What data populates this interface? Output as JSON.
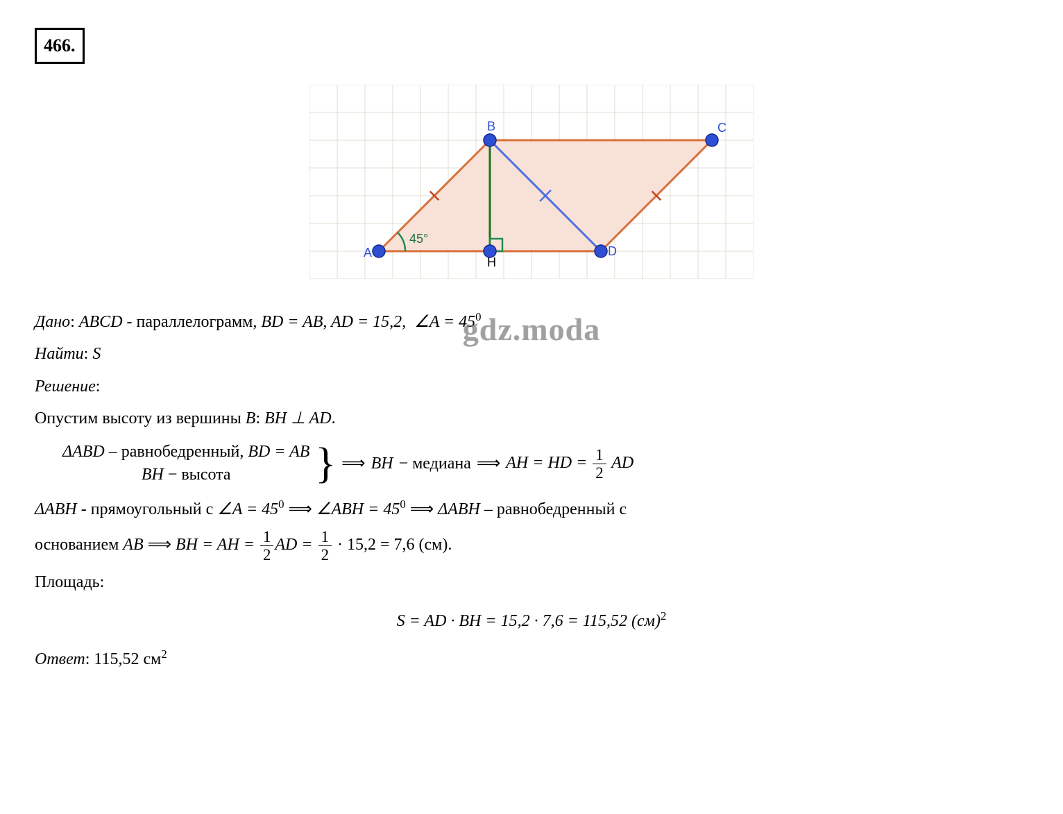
{
  "problem_number": "466.",
  "watermark": "gdz.moda",
  "diagram": {
    "grid": {
      "cols": 16,
      "rows": 7,
      "cell": 40,
      "color": "#e0dccf",
      "background": "#ffffff"
    },
    "shape_fill": "#f8e2d8",
    "line_color": "#d96f3a",
    "line_width": 3,
    "points": {
      "A": {
        "x": 2.5,
        "y": 6,
        "label": "A",
        "label_dx": -22,
        "label_dy": 8
      },
      "B": {
        "x": 6.5,
        "y": 2,
        "label": "B",
        "label_dx": -4,
        "label_dy": -14
      },
      "C": {
        "x": 14.5,
        "y": 2,
        "label": "C",
        "label_dx": 8,
        "label_dy": -12
      },
      "D": {
        "x": 10.5,
        "y": 6,
        "label": "D",
        "label_dx": 10,
        "label_dy": 6
      },
      "H": {
        "x": 6.5,
        "y": 6,
        "label": "H",
        "label_dx": -4,
        "label_dy": 22
      }
    },
    "point_radius": 9,
    "point_fill": "#2e4fd4",
    "point_stroke": "#1a2a88",
    "label_color": "#2e4fd4",
    "label_fontsize": 18,
    "height_line_color": "#1f6f1f",
    "diag_line_color": "#5070e0",
    "tick_color": "#c44020",
    "angle_arc_color": "#1f8f4f",
    "angle_label": "45°",
    "angle_label_color": "#1f6f3f",
    "perp_square_color": "#1f8f4f"
  },
  "given": {
    "label": "Дано",
    "text1": "ABCD",
    "text2": " - параллелограмм, ",
    "eq1": "BD = AB, AD = 15,2,",
    "angle": "∠A = 45",
    "deg": "0"
  },
  "find": {
    "label": "Найти",
    "value": "S"
  },
  "solution_label": "Решение",
  "step1": {
    "prefix": "Опустим высоту из вершины ",
    "v": "B",
    "mid": ": ",
    "perp": "BH ⊥ AD",
    "suffix": "."
  },
  "brace": {
    "line1a": "ΔABD",
    "line1b": " – равнобедренный, ",
    "line1c": "BD = AB",
    "line2a": "BH",
    "line2b": " − высота",
    "tail1a": "BH",
    "tail1b": " − медиана",
    "tail2a": "AH = HD = ",
    "tail2num": "1",
    "tail2den": "2",
    "tail2c": " AD"
  },
  "step2": {
    "a": "ΔABH",
    "b": " - прямоугольный с ",
    "c": "∠A = 45",
    "deg": "0",
    "d": "∠ABH = 45",
    "e": "ΔABH",
    "f": " – равнобедренный с"
  },
  "step3": {
    "a": "основанием ",
    "b": "AB",
    "c": "BH = AH = ",
    "num1": "1",
    "den1": "2",
    "d": "AD = ",
    "num2": "1",
    "den2": "2",
    "e": " · 15,2 = 7,6 (см)."
  },
  "area_label": "Площадь:",
  "area_formula": {
    "a": "S = AD · BH = 15,2 · 7,6 = 115,52 (см)",
    "sup": "2"
  },
  "answer": {
    "label": "Ответ",
    "value": "115,52 см",
    "sup": "2"
  }
}
